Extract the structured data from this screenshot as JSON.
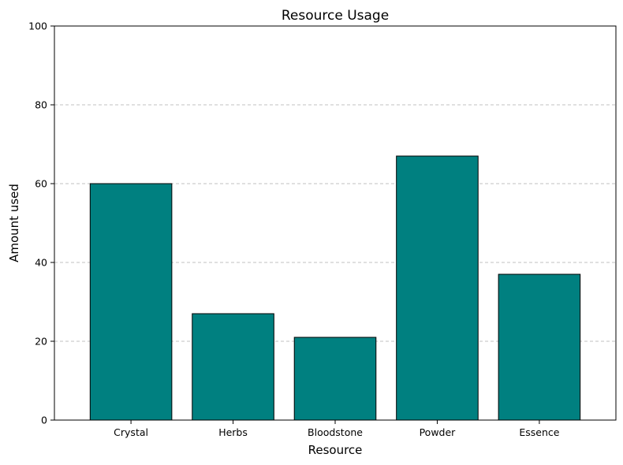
{
  "chart_data": {
    "type": "bar",
    "title": "Resource Usage",
    "xlabel": "Resource",
    "ylabel": "Amount used",
    "categories": [
      "Crystal",
      "Herbs",
      "Bloodstone",
      "Powder",
      "Essence"
    ],
    "values": [
      60,
      27,
      21,
      67,
      37
    ],
    "ylim": [
      0,
      100
    ],
    "yticks": [
      0,
      20,
      40,
      60,
      80,
      100
    ],
    "grid": "y-dashed",
    "legend": "none",
    "colors": {
      "bar": "#008080",
      "edge": "#000000",
      "grid": "#c0c0c0"
    }
  }
}
